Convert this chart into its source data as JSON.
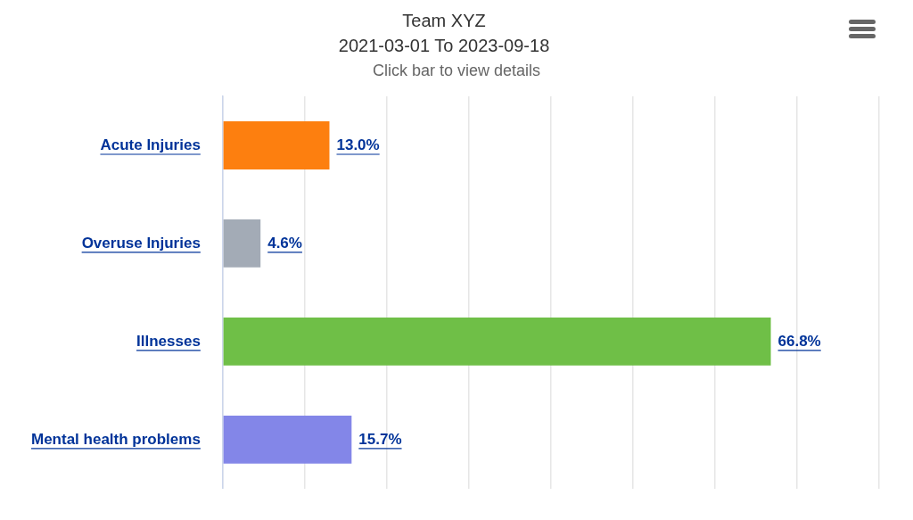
{
  "chart_data": {
    "type": "bar",
    "orientation": "horizontal",
    "title": "Team XYZ",
    "subtitle": "2021-03-01 To 2023-09-18",
    "annotations": [
      "Click bar to view details"
    ],
    "categories": [
      "Acute Injuries",
      "Overuse Injuries",
      "Illnesses",
      "Mental health problems"
    ],
    "values": [
      13.0,
      4.6,
      66.8,
      15.7
    ],
    "colors": [
      "#fd7f0f",
      "#a3abb6",
      "#6fbf47",
      "#8386e8"
    ],
    "value_labels": [
      "13.0%",
      "4.6%",
      "66.8%",
      "15.7%"
    ],
    "xlim": [
      0,
      80
    ],
    "xticks": [
      {
        "value": 0,
        "label": null
      },
      {
        "value": 10,
        "label": null
      },
      {
        "value": 20,
        "label": null
      },
      {
        "value": 30,
        "label": null
      },
      {
        "value": 40,
        "label": null
      },
      {
        "value": 50,
        "label": null
      },
      {
        "value": 60,
        "label": null
      },
      {
        "value": 70,
        "label": null
      },
      {
        "value": 80,
        "label": null
      }
    ],
    "tick_labels": "y",
    "grid": "x",
    "legend": false
  }
}
